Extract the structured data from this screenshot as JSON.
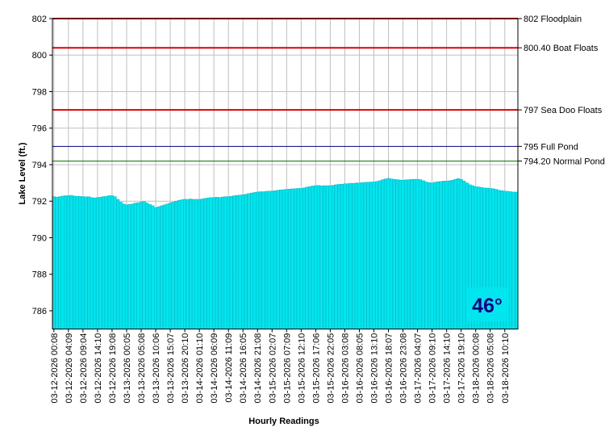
{
  "chart_data": {
    "type": "area",
    "y_label": "Lake Level (ft.)",
    "x_label": "Hourly Readings",
    "annotation": "46°",
    "color": "#00e5ee",
    "grid": true,
    "ylim": [
      785,
      802
    ],
    "yticks": [
      786,
      788,
      790,
      792,
      794,
      796,
      798,
      800,
      802
    ],
    "reference_lines": [
      {
        "value": 802,
        "label": "802 Floodplain",
        "color": "#e00000"
      },
      {
        "value": 800.4,
        "label": "800.40 Boat Floats",
        "color": "#e00000"
      },
      {
        "value": 797,
        "label": "797 Sea Doo Floats",
        "color": "#e00000"
      },
      {
        "value": 795,
        "label": "795 Full Pond",
        "color": "#000080"
      },
      {
        "value": 794.2,
        "label": "794.20 Normal Pond",
        "color": "#008000"
      }
    ],
    "categories": [
      "03-12-2026 00:08",
      null,
      null,
      null,
      null,
      "03-12-2026 04:09",
      null,
      null,
      null,
      null,
      "03-12-2026 09:04",
      null,
      null,
      null,
      null,
      "03-12-2026 14:10",
      null,
      null,
      null,
      null,
      "03-12-2026 19:08",
      null,
      null,
      null,
      null,
      "03-13-2026 00:05",
      null,
      null,
      null,
      null,
      "03-13-2026 05:08",
      null,
      null,
      null,
      null,
      "03-13-2026 10:06",
      null,
      null,
      null,
      null,
      "03-13-2026 15:07",
      null,
      null,
      null,
      null,
      "03-13-2026 20:10",
      null,
      null,
      null,
      null,
      "03-14-2026 01:10",
      null,
      null,
      null,
      null,
      "03-14-2026 06:09",
      null,
      null,
      null,
      null,
      "03-14-2026 11:09",
      null,
      null,
      null,
      null,
      "03-14-2026 16:05",
      null,
      null,
      null,
      null,
      "03-14-2026 21:08",
      null,
      null,
      null,
      null,
      "03-15-2026 02:07",
      null,
      null,
      null,
      null,
      "03-15-2026 07:09",
      null,
      null,
      null,
      null,
      "03-15-2026 12:10",
      null,
      null,
      null,
      null,
      "03-15-2026 17:06",
      null,
      null,
      null,
      null,
      "03-15-2026 22:05",
      null,
      null,
      null,
      null,
      "03-16-2026 03:08",
      null,
      null,
      null,
      null,
      "03-16-2026 08:05",
      null,
      null,
      null,
      null,
      "03-16-2026 13:10",
      null,
      null,
      null,
      null,
      "03-16-2026 18:07",
      null,
      null,
      null,
      null,
      "03-16-2026 23:08",
      null,
      null,
      null,
      null,
      "03-17-2026 04:07",
      null,
      null,
      null,
      null,
      "03-17-2026 09:10",
      null,
      null,
      null,
      null,
      "03-17-2026 14:10",
      null,
      null,
      null,
      null,
      "03-17-2026 19:10",
      null,
      null,
      null,
      null,
      "03-18-2026 00:08",
      null,
      null,
      null,
      null,
      "03-18-2026 05:08",
      null,
      null,
      null,
      null,
      "03-18-2026 10:10",
      null,
      null,
      null,
      null
    ],
    "values": [
      792.25,
      792.22,
      792.25,
      792.28,
      792.3,
      792.3,
      792.32,
      792.28,
      792.27,
      792.26,
      792.25,
      792.24,
      792.24,
      792.2,
      792.18,
      792.2,
      792.22,
      792.25,
      792.27,
      792.3,
      792.3,
      792.25,
      792.1,
      791.95,
      791.85,
      791.8,
      791.82,
      791.85,
      791.9,
      791.92,
      791.95,
      791.98,
      791.9,
      791.82,
      791.75,
      791.65,
      791.7,
      791.75,
      791.8,
      791.85,
      791.9,
      791.95,
      792.0,
      792.05,
      792.08,
      792.1,
      792.1,
      792.12,
      792.1,
      792.1,
      792.1,
      792.12,
      792.15,
      792.18,
      792.2,
      792.2,
      792.22,
      792.2,
      792.23,
      792.25,
      792.25,
      792.27,
      792.3,
      792.32,
      792.33,
      792.35,
      792.38,
      792.42,
      792.45,
      792.48,
      792.5,
      792.52,
      792.52,
      792.54,
      792.55,
      792.55,
      792.57,
      792.6,
      792.62,
      792.63,
      792.65,
      792.66,
      792.68,
      792.68,
      792.7,
      792.7,
      792.73,
      792.77,
      792.8,
      792.83,
      792.85,
      792.86,
      792.84,
      792.85,
      792.85,
      792.85,
      792.87,
      792.9,
      792.92,
      792.93,
      792.95,
      792.96,
      792.98,
      792.98,
      793.0,
      793.0,
      793.02,
      793.03,
      793.04,
      793.05,
      793.05,
      793.08,
      793.12,
      793.18,
      793.22,
      793.25,
      793.22,
      793.2,
      793.18,
      793.16,
      793.15,
      793.17,
      793.18,
      793.2,
      793.2,
      793.2,
      793.18,
      793.12,
      793.05,
      793.02,
      793.0,
      793.04,
      793.07,
      793.08,
      793.1,
      793.1,
      793.12,
      793.15,
      793.2,
      793.24,
      793.2,
      793.1,
      793.0,
      792.9,
      792.85,
      792.8,
      792.78,
      792.75,
      792.72,
      792.72,
      792.7,
      792.68,
      792.65,
      792.6,
      792.58,
      792.55,
      792.54,
      792.52,
      792.5,
      792.5
    ]
  }
}
